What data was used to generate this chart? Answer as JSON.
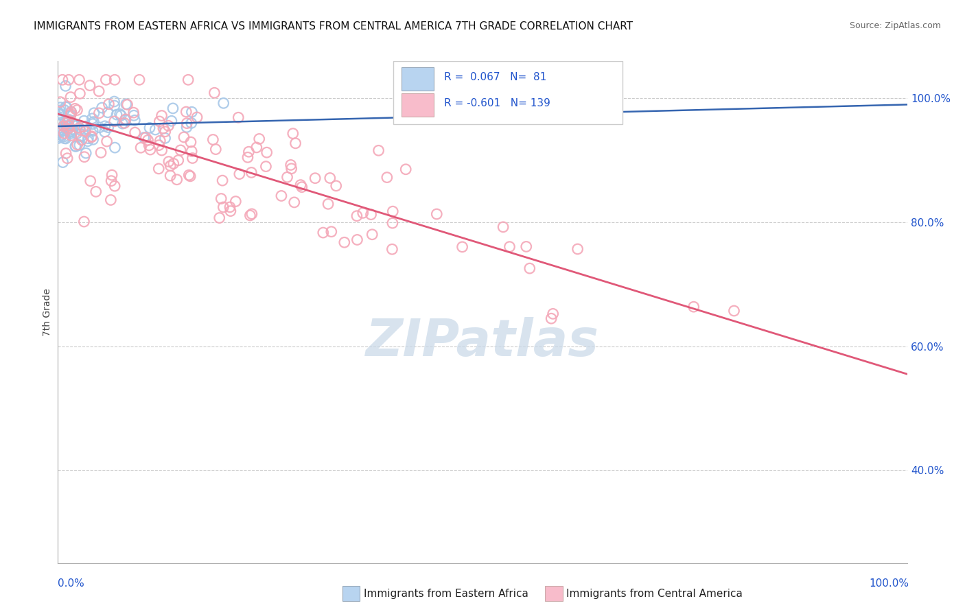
{
  "title": "IMMIGRANTS FROM EASTERN AFRICA VS IMMIGRANTS FROM CENTRAL AMERICA 7TH GRADE CORRELATION CHART",
  "source": "Source: ZipAtlas.com",
  "ylabel": "7th Grade",
  "blue_label": "Immigrants from Eastern Africa",
  "pink_label": "Immigrants from Central America",
  "xlim": [
    0.0,
    1.0
  ],
  "ylim": [
    0.25,
    1.06
  ],
  "yticks": [
    0.4,
    0.6,
    0.8,
    1.0
  ],
  "ytick_labels": [
    "40.0%",
    "60.0%",
    "80.0%",
    "100.0%"
  ],
  "blue_R": 0.067,
  "blue_N": 81,
  "pink_R": -0.601,
  "pink_N": 139,
  "blue_color": "#a8c8e8",
  "pink_color": "#f4a8b8",
  "blue_line_color": "#3565b0",
  "pink_line_color": "#e05878",
  "legend_R_color": "#2255cc",
  "watermark": "ZIPatlas",
  "watermark_color": "#c8d8e8",
  "background_color": "#ffffff",
  "grid_color": "#cccccc",
  "title_fontsize": 11,
  "source_fontsize": 9,
  "blue_intercept": 0.955,
  "blue_slope": 0.035,
  "pink_intercept": 0.975,
  "pink_slope": -0.42,
  "blue_seed": 42,
  "pink_seed": 17
}
